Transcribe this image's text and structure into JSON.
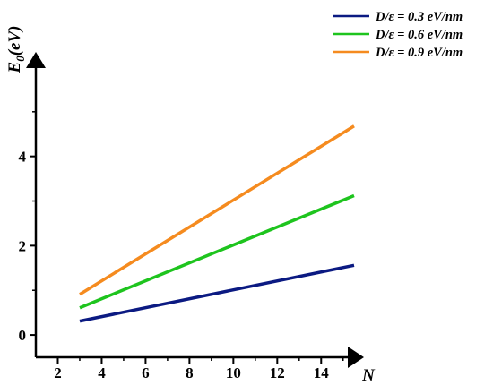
{
  "chart_data": {
    "type": "line",
    "title": "",
    "xlabel": "N",
    "ylabel": "E0(eV)",
    "ylabel_main": "E",
    "ylabel_sub": "0",
    "ylabel_rest": "(eV)",
    "xlim": [
      1,
      15.5
    ],
    "ylim": [
      -0.5,
      6.3
    ],
    "xticks": [
      "2",
      "4",
      "6",
      "8",
      "10",
      "12",
      "14"
    ],
    "yticks": [
      "0",
      "2",
      "4"
    ],
    "xtick_values": [
      2,
      4,
      6,
      8,
      10,
      12,
      14
    ],
    "ytick_values": [
      0,
      2,
      4
    ],
    "grid": false,
    "legend_position": "top-right",
    "series": [
      {
        "name": "D/ε = 0.3 eV/nm",
        "color": "#0b1a82",
        "x": [
          3,
          15.5
        ],
        "y": [
          0.31,
          1.56
        ]
      },
      {
        "name": "D/ε = 0.6 eV/nm",
        "color": "#1ec41e",
        "x": [
          3,
          15.5
        ],
        "y": [
          0.61,
          3.12
        ]
      },
      {
        "name": "D/ε = 0.9 eV/nm",
        "color": "#f58b1f",
        "x": [
          3,
          15.5
        ],
        "y": [
          0.91,
          4.68
        ]
      }
    ]
  }
}
